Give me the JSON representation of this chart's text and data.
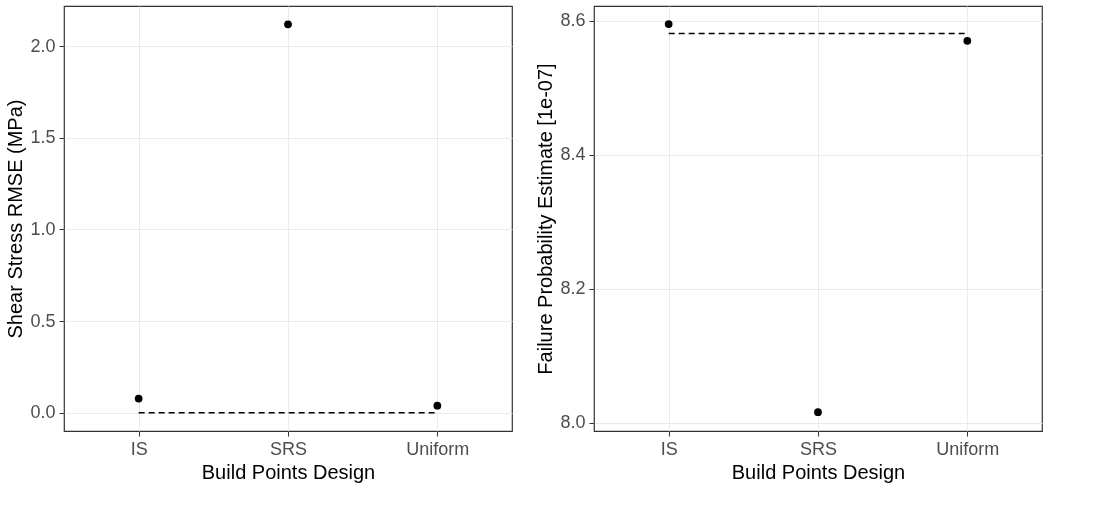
{
  "chart_data": [
    {
      "type": "scatter",
      "xlabel": "Build Points Design",
      "ylabel": "Shear Stress RMSE (MPa)",
      "categories": [
        "IS",
        "SRS",
        "Uniform"
      ],
      "ylim": [
        -0.1,
        2.22
      ],
      "yticks": [
        {
          "value": 0,
          "label": "0.0"
        },
        0.5,
        {
          "value": 1,
          "label": "1.0"
        },
        1.5,
        {
          "value": 2,
          "label": "2.0"
        }
      ],
      "grid": true,
      "series": [
        {
          "color": "#000000",
          "values": [
            0.077,
            2.12,
            0.038
          ],
          "marker": "circle"
        },
        {
          "type": "line",
          "color": "#000000",
          "values": [
            0,
            0,
            0
          ],
          "line_style": "dashed",
          "marker": "none"
        }
      ]
    },
    {
      "type": "scatter",
      "xlabel": "Build Points Design",
      "ylabel": "Failure Probability Estimate [1e-07]",
      "categories": [
        "IS",
        "SRS",
        "Uniform"
      ],
      "ylim": [
        7.988,
        8.622
      ],
      "yticks": [
        {
          "value": 8,
          "label": "8.0"
        },
        8.2,
        8.4,
        8.6
      ],
      "grid": true,
      "series": [
        {
          "color": "#000000",
          "values": [
            8.595,
            8.016,
            8.57
          ],
          "marker": "circle"
        },
        {
          "type": "line",
          "color": "#000000",
          "values": [
            8.581,
            8.581,
            8.581
          ],
          "line_style": "dashed",
          "marker": "none"
        }
      ]
    }
  ]
}
